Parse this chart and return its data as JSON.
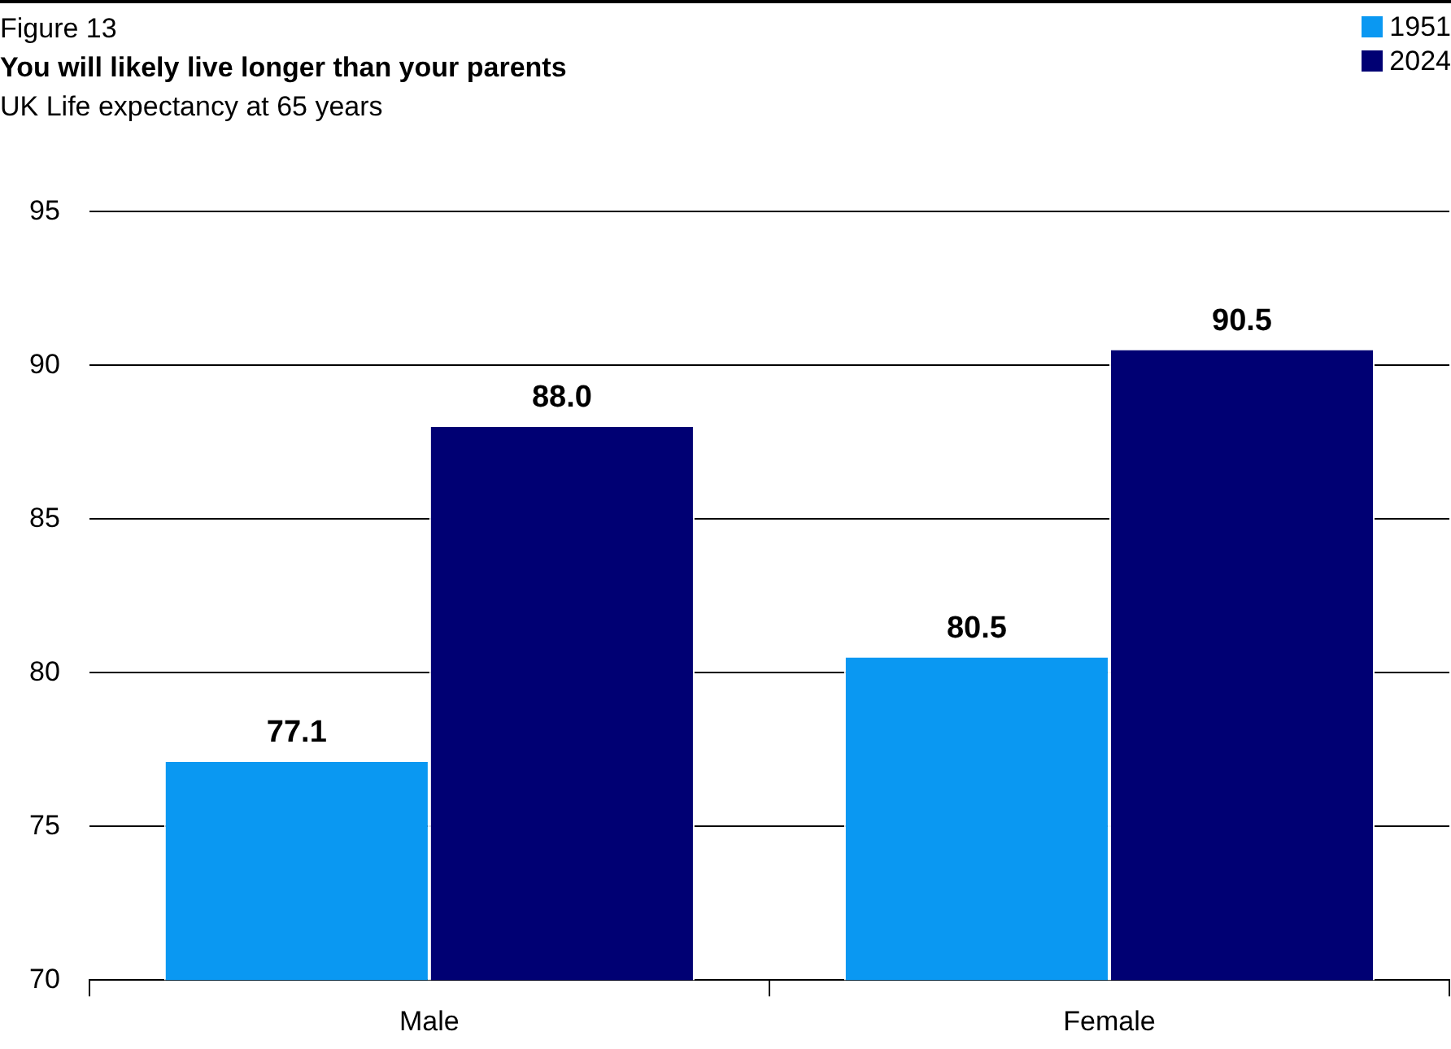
{
  "chart_data": {
    "type": "bar",
    "title": "You will likely live longer than your parents",
    "subtitle": "UK Life expectancy at 65 years",
    "annotations": [
      "Figure 13"
    ],
    "categories": [
      "Male",
      "Female"
    ],
    "series": [
      {
        "name": "1951",
        "color": "#0a98f2",
        "values": [
          77.1,
          80.5
        ],
        "value_labels": [
          "77.1",
          "80.5"
        ]
      },
      {
        "name": "2024",
        "color": "#000073",
        "values": [
          88.0,
          90.5
        ],
        "value_labels": [
          "88.0",
          "90.5"
        ]
      }
    ],
    "ylim": [
      70,
      95
    ],
    "yticks": [
      70,
      75,
      80,
      85,
      90,
      95
    ],
    "grid": "y",
    "legend": "top right"
  }
}
